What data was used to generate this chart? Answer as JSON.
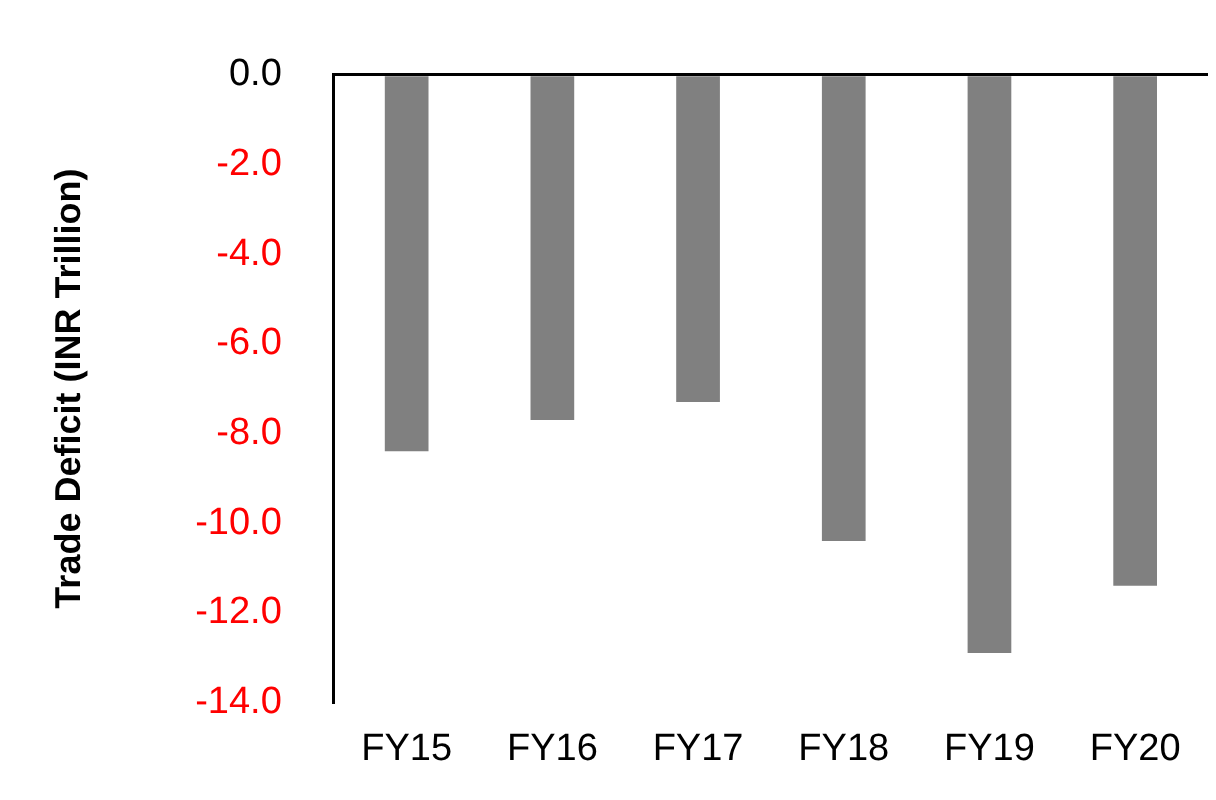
{
  "chart_data": {
    "type": "bar",
    "ylabel": "Trade Deficit (INR Trillion)",
    "categories": [
      "FY15",
      "FY16",
      "FY17",
      "FY18",
      "FY19",
      "FY20"
    ],
    "values": [
      -8.4,
      -7.7,
      -7.3,
      -10.4,
      -12.9,
      -11.4
    ],
    "color": "#808080",
    "ylim": [
      -14,
      0
    ],
    "yticks": [
      {
        "value": 0,
        "label": "0.0"
      },
      {
        "value": -2,
        "label": "-2.0"
      },
      {
        "value": -4,
        "label": "-4.0"
      },
      {
        "value": -6,
        "label": "-6.0"
      },
      {
        "value": -8,
        "label": "-8.0"
      },
      {
        "value": -10,
        "label": "-10.0"
      },
      {
        "value": -12,
        "label": "-12.0"
      },
      {
        "value": -14,
        "label": "-14.0"
      }
    ],
    "grid": false,
    "legend": false
  }
}
